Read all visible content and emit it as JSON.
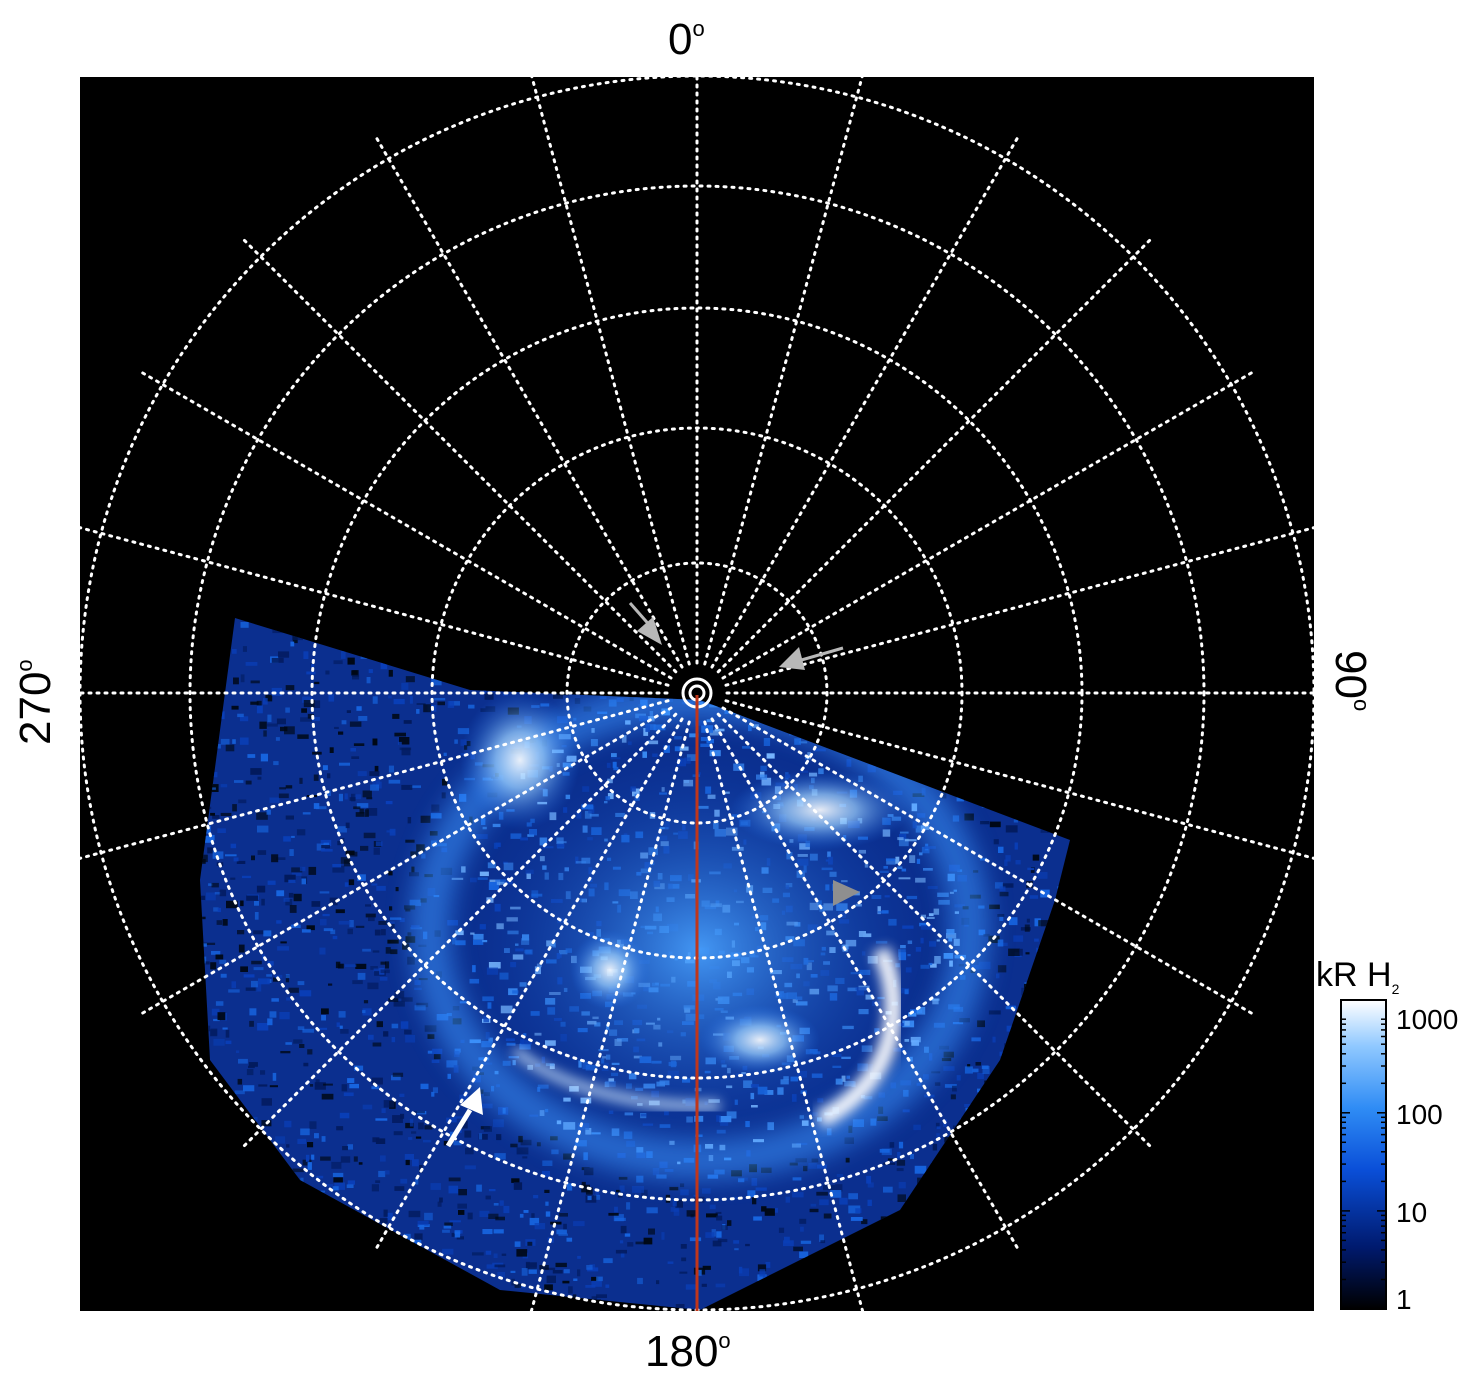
{
  "figure": {
    "axis_labels": {
      "top": "0",
      "right": "90",
      "bottom": "180",
      "left": "270",
      "degree_symbol": "o"
    },
    "colorbar": {
      "title": "kR H",
      "title_subscript": "2",
      "scale": "log",
      "range": [
        1,
        1000
      ],
      "ticks": [
        "1000",
        "100",
        "10",
        "1"
      ],
      "colors": [
        "#000000",
        "#001a6e",
        "#0a4fd8",
        "#2f8cf5",
        "#8fc8ff",
        "#ffffff"
      ]
    },
    "grid": {
      "style": "dotted",
      "color": "#ffffff"
    },
    "meridian_line_color": "#c0361a",
    "annotations": {
      "white_arrow": "white arrow pointing to arc emission",
      "gray_arrows": 2,
      "gray_triangle": 1
    },
    "background": "#000000"
  }
}
